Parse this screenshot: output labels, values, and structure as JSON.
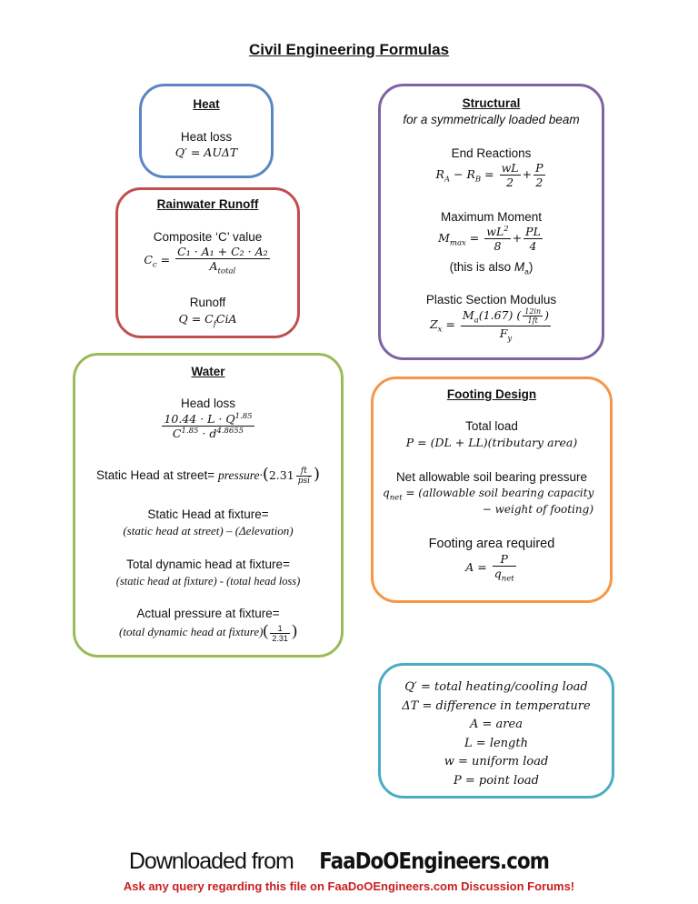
{
  "title": "Civil Engineering Formulas",
  "colors": {
    "heat": "#5b86c5",
    "rainwater": "#c0504d",
    "structural": "#8064a2",
    "water": "#9bbb59",
    "footing": "#f79646",
    "legend": "#4bacc6",
    "footer_red": "#c9201f"
  },
  "heat": {
    "heading": "Heat",
    "label": "Heat loss",
    "formula": "Q′ = AUΔT"
  },
  "rainwater": {
    "heading": "Rainwater Runoff",
    "composite_label": "Composite ‘C’ value",
    "cc_lhs": "C",
    "cc_sub": "c",
    "eq": "=",
    "cc_num": "C₁ · A₁ + C₂ · A₂",
    "cc_den": "A",
    "cc_den_sub": "total",
    "runoff_label": "Runoff",
    "runoff_a": "Q = C",
    "runoff_sub": "f",
    "runoff_b": "CiA"
  },
  "structural": {
    "heading": "Structural",
    "subheading": "for a symmetrically loaded beam",
    "end_label": "End Reactions",
    "end_lhs": "R",
    "sub_a": "A",
    "minus": " − R",
    "sub_b": "B",
    "eq": " = ",
    "wl": "wL",
    "two": "2",
    "plus": "+",
    "p": "P",
    "moment_label": "Maximum Moment",
    "m": "M",
    "max": "max",
    "wl2": "wL",
    "sq": "2",
    "eight": "8",
    "pl": "PL",
    "four": "4",
    "also": "(this is also ",
    "ma_m": "M",
    "ma_a": "a",
    "close": ")",
    "plastic_label": "Plastic Section Modulus",
    "z": "Z",
    "x": "x",
    "num_a": "(1.67)",
    "in": "12in",
    "ft": "1ft",
    "f": "F",
    "y": "y"
  },
  "water": {
    "heading": "Water",
    "headloss_label": "Head loss",
    "hl_num": "10.44 · L · Q",
    "hl_num_exp": "1.85",
    "hl_den_c": "C",
    "hl_den_c_exp": "1.85",
    "hl_den_d": " · d",
    "hl_den_d_exp": "4.8655",
    "street_label": "Static Head at street=",
    "street_var": "pressure·",
    "street_val": "2.31",
    "street_ft": "ft",
    "street_psi": "psi",
    "fixture_label": "Static Head at fixture=",
    "fixture_formula": "(static head at street) – (Δelevation)",
    "tdh_label": "Total dynamic head at fixture=",
    "tdh_formula": "(static head at fixture) - (total head loss)",
    "actual_label": "Actual pressure at fixture=",
    "actual_formula": "(total dynamic head at fixture)",
    "one": "1",
    "den": "2.31"
  },
  "footing": {
    "heading": "Footing Design",
    "total_label": "Total load",
    "total_formula": "P = (DL + LL)(tributary area)",
    "net_label": "Net allowable soil bearing pressure",
    "q": "q",
    "net": "net",
    "net_line1": " = (allowable soil bearing capacity",
    "net_line2": "− weight of footing)",
    "area_label": "Footing area required",
    "area_lhs": "A = ",
    "p": "P"
  },
  "legend": {
    "items": [
      "Q′ = total heating/cooling load",
      "ΔT = difference in temperature",
      "A = area",
      "L = length",
      "w = uniform load",
      "P = point load"
    ]
  },
  "footer": {
    "downloaded": "Downloaded from ",
    "logo": "FaaDoOEngineers.com",
    "ask": "Ask any query regarding this file on FaaDoOEngineers.com Discussion Forums!"
  }
}
